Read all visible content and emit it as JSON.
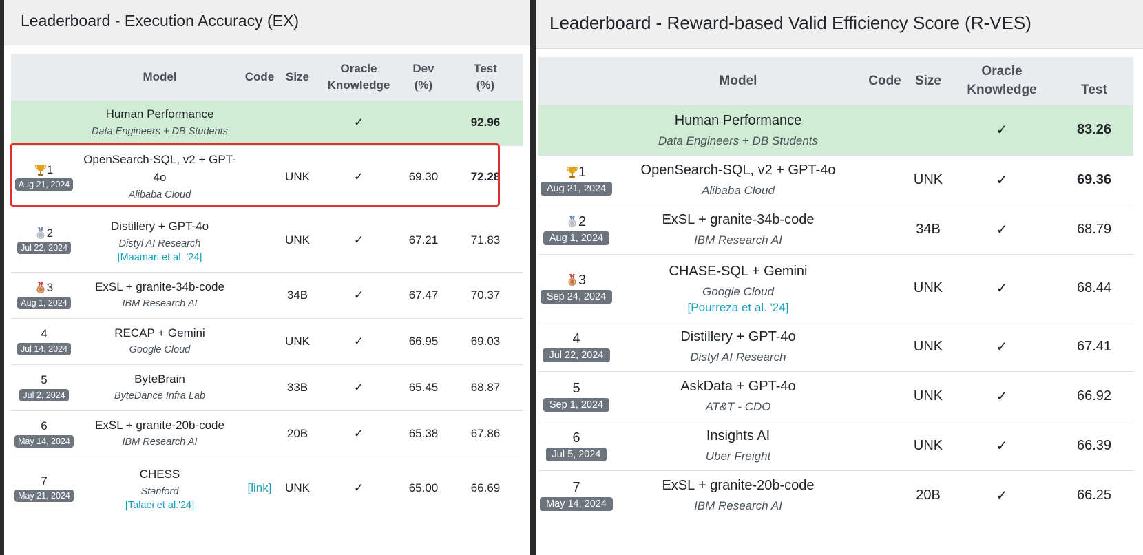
{
  "colors": {
    "human_row": "#d1ecd5",
    "header_row": "#e9ecef",
    "badge": "#6c757d",
    "link": "#17a2b8",
    "highlight": "#e03030"
  },
  "ex": {
    "title": "Leaderboard - Execution Accuracy (EX)",
    "headers": {
      "model": "Model",
      "code": "Code",
      "size": "Size",
      "oracle_1": "Oracle",
      "oracle_2": "Knowledge",
      "dev_1": "Dev",
      "dev_2": "(%)",
      "test_1": "Test",
      "test_2": "(%)"
    },
    "human": {
      "name": "Human Performance",
      "org": "Data Engineers + DB Students",
      "oracle": "✓",
      "test": "92.96"
    },
    "rows": [
      {
        "rank": "1",
        "medal": "trophy-icon",
        "date": "Aug 21, 2024",
        "name": "OpenSearch-SQL, v2 + GPT-4o",
        "org": "Alibaba Cloud",
        "cite": "",
        "code": "",
        "size": "UNK",
        "oracle": "✓",
        "dev": "69.30",
        "test": "72.28"
      },
      {
        "rank": "2",
        "medal": "silver-medal-icon",
        "date": "Jul 22, 2024",
        "name": "Distillery + GPT-4o",
        "org": "Distyl AI Research",
        "cite": "[Maamari et al. '24]",
        "code": "",
        "size": "UNK",
        "oracle": "✓",
        "dev": "67.21",
        "test": "71.83"
      },
      {
        "rank": "3",
        "medal": "bronze-medal-icon",
        "date": "Aug 1, 2024",
        "name": "ExSL + granite-34b-code",
        "org": "IBM Research AI",
        "cite": "",
        "code": "",
        "size": "34B",
        "oracle": "✓",
        "dev": "67.47",
        "test": "70.37"
      },
      {
        "rank": "4",
        "medal": "",
        "date": "Jul 14, 2024",
        "name": "RECAP + Gemini",
        "org": "Google Cloud",
        "cite": "",
        "code": "",
        "size": "UNK",
        "oracle": "✓",
        "dev": "66.95",
        "test": "69.03"
      },
      {
        "rank": "5",
        "medal": "",
        "date": "Jul 2, 2024",
        "name": "ByteBrain",
        "org": "ByteDance Infra Lab",
        "cite": "",
        "code": "",
        "size": "33B",
        "oracle": "✓",
        "dev": "65.45",
        "test": "68.87"
      },
      {
        "rank": "6",
        "medal": "",
        "date": "May 14, 2024",
        "name": "ExSL + granite-20b-code",
        "org": "IBM Research AI",
        "cite": "",
        "code": "",
        "size": "20B",
        "oracle": "✓",
        "dev": "65.38",
        "test": "67.86"
      },
      {
        "rank": "7",
        "medal": "",
        "date": "May 21, 2024",
        "name": "CHESS",
        "org": "Stanford",
        "cite": "[Talaei et al.'24]",
        "code": "[link]",
        "size": "UNK",
        "oracle": "✓",
        "dev": "65.00",
        "test": "66.69"
      }
    ]
  },
  "rves": {
    "title": "Leaderboard - Reward-based Valid Efficiency Score (R-VES)",
    "headers": {
      "model": "Model",
      "code": "Code",
      "size": "Size",
      "oracle_1": "Oracle",
      "oracle_2": "Knowledge",
      "test": "Test"
    },
    "human": {
      "name": "Human Performance",
      "org": "Data Engineers + DB Students",
      "oracle": "✓",
      "test": "83.26"
    },
    "rows": [
      {
        "rank": "1",
        "medal": "trophy-icon",
        "date": "Aug 21, 2024",
        "name": "OpenSearch-SQL, v2 + GPT-4o",
        "org": "Alibaba Cloud",
        "cite": "",
        "size": "UNK",
        "oracle": "✓",
        "test": "69.36"
      },
      {
        "rank": "2",
        "medal": "silver-medal-icon",
        "date": "Aug 1, 2024",
        "name": "ExSL + granite-34b-code",
        "org": "IBM Research AI",
        "cite": "",
        "size": "34B",
        "oracle": "✓",
        "test": "68.79"
      },
      {
        "rank": "3",
        "medal": "bronze-medal-icon",
        "date": "Sep 24, 2024",
        "name": "CHASE-SQL + Gemini",
        "org": "Google Cloud",
        "cite": "[Pourreza et al. '24]",
        "size": "UNK",
        "oracle": "✓",
        "test": "68.44"
      },
      {
        "rank": "4",
        "medal": "",
        "date": "Jul 22, 2024",
        "name": "Distillery + GPT-4o",
        "org": "Distyl AI Research",
        "cite": "",
        "size": "UNK",
        "oracle": "✓",
        "test": "67.41"
      },
      {
        "rank": "5",
        "medal": "",
        "date": "Sep 1, 2024",
        "name": "AskData + GPT-4o",
        "org": "AT&T - CDO",
        "cite": "",
        "size": "UNK",
        "oracle": "✓",
        "test": "66.92"
      },
      {
        "rank": "6",
        "medal": "",
        "date": "Jul 5, 2024",
        "name": "Insights AI",
        "org": "Uber Freight",
        "cite": "",
        "size": "UNK",
        "oracle": "✓",
        "test": "66.39"
      },
      {
        "rank": "7",
        "medal": "",
        "date": "May 14, 2024",
        "name": "ExSL + granite-20b-code",
        "org": "IBM Research AI",
        "cite": "",
        "size": "20B",
        "oracle": "✓",
        "test": "66.25"
      }
    ]
  }
}
